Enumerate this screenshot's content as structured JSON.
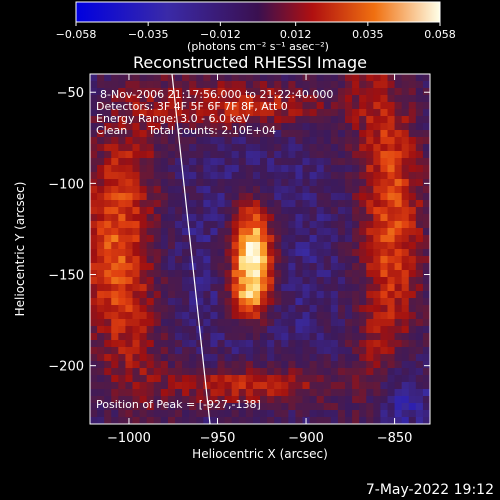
{
  "colorbar": {
    "ticks": [
      "−0.058",
      "−0.035",
      "−0.012",
      "0.012",
      "0.035",
      "0.058"
    ],
    "tick_values": [
      -0.058,
      -0.035,
      -0.012,
      0.012,
      0.035,
      0.058
    ],
    "unit_label": "(photons cm⁻² s⁻¹ asec⁻²)"
  },
  "footer": {
    "timestamp": "7-May-2022 19:12"
  },
  "chart_data": {
    "type": "heatmap",
    "title": "Reconstructed RHESSI Image",
    "xlabel": "Heliocentric X (arcsec)",
    "ylabel": "Heliocentric Y (arcsec)",
    "xlim": [
      -1022,
      -830
    ],
    "ylim": [
      -232,
      -40
    ],
    "x_ticks": [
      -1000,
      -950,
      -900,
      -850
    ],
    "y_ticks": [
      -50,
      -100,
      -150,
      -200
    ],
    "x_tick_labels": [
      "−1000",
      "−950",
      "−900",
      "−850"
    ],
    "y_tick_labels": [
      "−50",
      "−100",
      "−150",
      "−200"
    ],
    "annotations": [
      "8-Nov-2006 21:17:56.000 to 21:22:40.000",
      "Detectors: 3F 4F 5F 6F 7F 8F, Att 0",
      "Energy Range: 3.0 - 6.0 keV",
      "Clean      Total counts: 2.10E+04"
    ],
    "peak_label": "Position of Peak = [-927,-138]",
    "peak": [
      -927,
      -138
    ],
    "colorscale_range": [
      -0.058,
      0.058
    ],
    "colors": {
      "negative": "#1010d0",
      "mid": "#4a1a6e",
      "positive_low": "#b01010",
      "positive_mid": "#f06010",
      "positive_high": "#fff8d0"
    }
  }
}
